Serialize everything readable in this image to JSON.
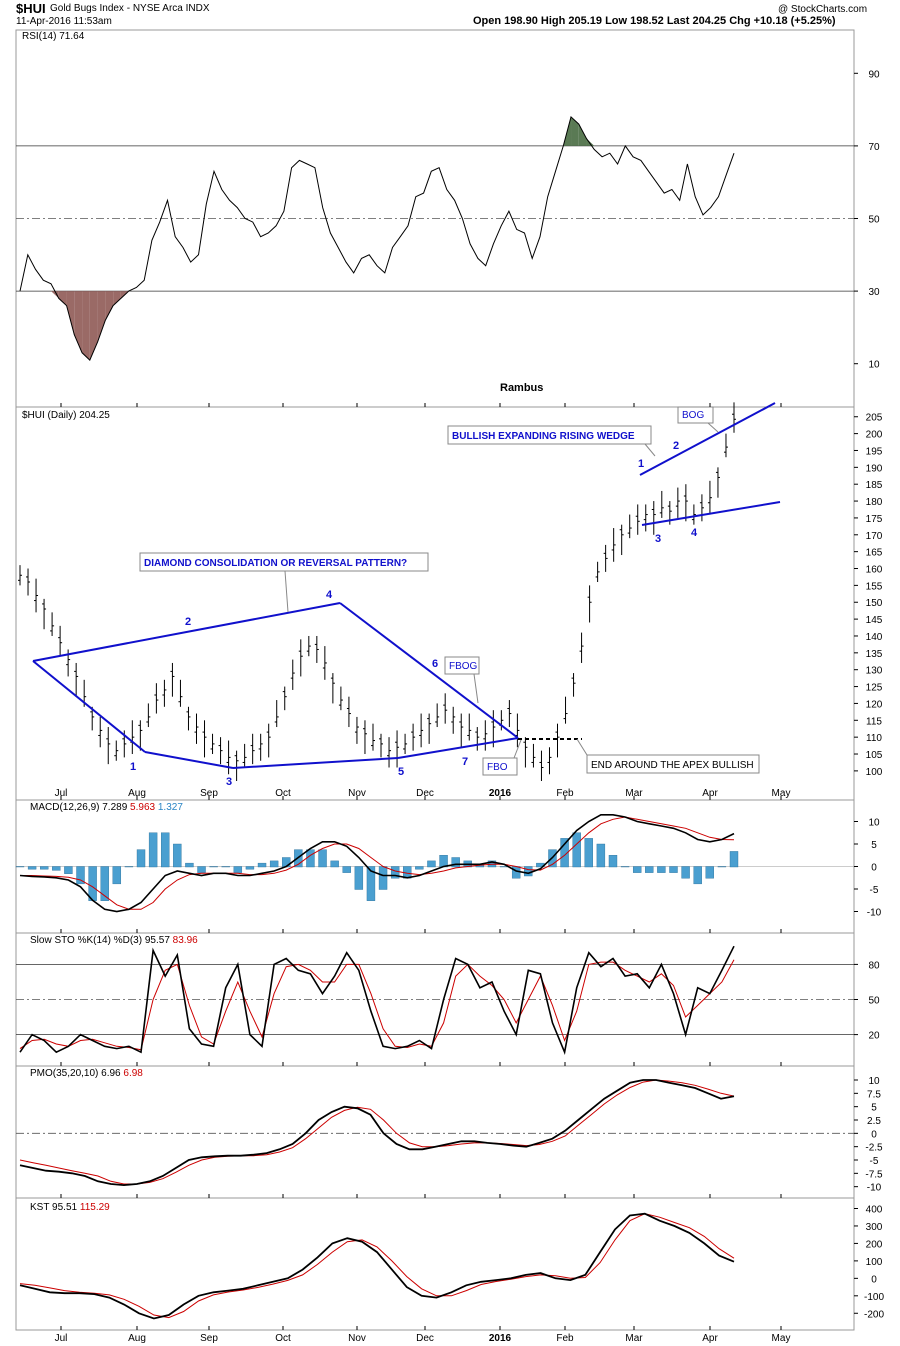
{
  "header": {
    "symbol": "$HUI",
    "name": "Gold Bugs Index - NYSE Arca INDX",
    "date": "11-Apr-2016 11:53am",
    "quote": "Open 198.90  High 205.19  Low 198.52  Last 204.25  Chg +10.18 (+5.25%)",
    "watermark": "@ StockCharts.com",
    "author": "Rambus"
  },
  "chart_data": [
    {
      "type": "line",
      "panel": "rsi",
      "label": "RSI(14) 71.64",
      "ticks": [
        10,
        30,
        50,
        70,
        90
      ],
      "ylim": [
        0,
        100
      ],
      "overbought": 70,
      "oversold": 30,
      "overbought_color": "#5a7a54",
      "oversold_color": "#9a6a66",
      "series": [
        {
          "values": [
            30,
            40,
            36,
            33,
            32,
            28,
            26,
            18,
            13,
            11,
            16,
            22,
            26,
            28,
            30,
            31,
            33,
            44,
            49,
            55,
            45,
            42,
            38,
            40,
            54,
            63,
            58,
            55,
            53,
            50,
            49,
            45,
            46,
            48,
            52,
            64,
            66,
            65,
            64,
            53,
            46,
            42,
            38,
            35,
            39,
            40,
            37,
            35,
            42,
            45,
            48,
            56,
            57,
            63,
            64,
            58,
            55,
            50,
            43,
            39,
            37,
            43,
            48,
            52,
            47,
            46,
            39,
            45,
            56,
            63,
            70,
            78,
            76,
            72,
            69,
            67,
            68,
            65,
            70,
            67,
            66,
            63,
            60,
            57,
            58,
            55,
            65,
            56,
            51,
            53,
            56,
            62,
            68
          ]
        }
      ]
    },
    {
      "type": "ohlc",
      "panel": "price",
      "label": "$HUI (Daily) 204.25",
      "ticks": [
        100,
        105,
        110,
        115,
        120,
        125,
        130,
        135,
        140,
        145,
        150,
        155,
        160,
        165,
        170,
        175,
        180,
        185,
        190,
        195,
        200,
        205
      ],
      "ylim": [
        97,
        207
      ],
      "values": [
        158,
        156,
        152,
        148,
        143,
        138,
        133,
        128,
        122,
        116,
        112,
        108,
        106,
        108,
        110,
        112,
        116,
        121,
        124,
        128,
        122,
        116,
        113,
        110,
        108,
        106,
        104,
        103,
        104,
        106,
        108,
        110,
        116,
        122,
        129,
        134,
        137,
        136,
        132,
        126,
        121,
        117,
        113,
        111,
        109,
        108,
        106,
        107,
        108,
        110,
        112,
        114,
        116,
        118,
        116,
        113,
        112,
        110,
        111,
        113,
        115,
        117,
        112,
        107,
        104,
        101,
        104,
        110,
        117,
        126,
        137,
        150,
        159,
        163,
        167,
        170,
        172,
        174,
        176,
        176,
        178,
        177,
        180,
        180,
        176,
        178,
        181,
        187,
        196,
        204.25
      ],
      "annotations": {
        "diamond_title": "DIAMOND CONSOLIDATION  OR REVERSAL PATTERN?",
        "wedge_title": "BULLISH EXPANDING RISING WEDGE",
        "fbog": "FBOG",
        "fbo": "FBO",
        "bog": "BOG",
        "apex": "END AROUND THE APEX BULLISH",
        "diamond_points": [
          "1",
          "2",
          "3",
          "4",
          "5",
          "6",
          "7"
        ],
        "wedge_points": [
          "1",
          "2",
          "3",
          "4"
        ]
      },
      "pattern_color": "#1010cc"
    },
    {
      "type": "line",
      "panel": "macd",
      "label_name": "MACD(12,26,9)",
      "label_values": [
        "7.289",
        "5.963",
        "1.327"
      ],
      "ticks": [
        -10,
        -5,
        0,
        5,
        10
      ],
      "ylim": [
        -13,
        13
      ],
      "series": [
        {
          "name": "MACD",
          "values": [
            -2,
            -2.2,
            -2.3,
            -2.5,
            -3,
            -4.5,
            -7.5,
            -9.5,
            -10,
            -9.5,
            -8,
            -5,
            -2,
            -1,
            -1.5,
            -2,
            -1.5,
            -1.5,
            -2,
            -2,
            -1.5,
            -1,
            0,
            2,
            4,
            5.5,
            5.5,
            4.5,
            2,
            -1,
            -2,
            -2,
            -2.5,
            -2,
            -1,
            0,
            0.5,
            0.5,
            0.5,
            1,
            0.5,
            -1,
            -1.5,
            -0.5,
            2,
            5,
            8,
            10,
            11.5,
            11.5,
            11,
            10,
            9.5,
            9,
            8.5,
            7.5,
            6,
            5.5,
            6,
            7.3
          ]
        },
        {
          "name": "Signal",
          "values": [
            -2,
            -2,
            -2.1,
            -2.2,
            -2.4,
            -3,
            -4.5,
            -6.5,
            -8.5,
            -9.5,
            -9.5,
            -8,
            -5,
            -3,
            -1.8,
            -1.5,
            -1.5,
            -1.5,
            -1.5,
            -1.8,
            -1.8,
            -1.5,
            -0.8,
            0.5,
            2.5,
            4,
            5,
            5,
            4,
            2,
            0,
            -1,
            -1.5,
            -1.8,
            -1.5,
            -1,
            -0.3,
            0,
            0.3,
            0.5,
            0.5,
            0,
            -0.7,
            -0.8,
            0.5,
            2.5,
            5,
            7.5,
            9.5,
            10.5,
            11,
            10.5,
            10,
            9.5,
            9,
            8.5,
            7.5,
            6.5,
            6,
            5.96
          ]
        }
      ],
      "colors": {
        "macd": "#000000",
        "signal": "#cc0000",
        "hist": "#4a9fd0",
        "hist_value": "#2a85c5"
      }
    },
    {
      "type": "line",
      "panel": "sto",
      "label_name": "Slow STO %K(14) %D(3)",
      "label_values": [
        "95.57",
        "83.96"
      ],
      "ticks": [
        20,
        50,
        80
      ],
      "ylim": [
        0,
        100
      ],
      "series": [
        {
          "name": "%K",
          "values": [
            5,
            20,
            15,
            5,
            10,
            20,
            15,
            10,
            8,
            10,
            5,
            92,
            70,
            88,
            25,
            12,
            10,
            60,
            80,
            20,
            10,
            80,
            85,
            75,
            72,
            55,
            70,
            90,
            75,
            40,
            10,
            8,
            10,
            15,
            8,
            50,
            85,
            80,
            60,
            65,
            40,
            20,
            75,
            72,
            30,
            5,
            60,
            90,
            78,
            85,
            70,
            72,
            60,
            80,
            55,
            20,
            60,
            55,
            75,
            95.57
          ]
        },
        {
          "name": "%D",
          "values": [
            8,
            15,
            16,
            12,
            10,
            15,
            16,
            13,
            10,
            9,
            7,
            50,
            75,
            80,
            45,
            18,
            12,
            40,
            65,
            40,
            18,
            55,
            78,
            80,
            75,
            65,
            65,
            80,
            80,
            55,
            25,
            10,
            9,
            12,
            10,
            30,
            70,
            80,
            70,
            62,
            50,
            30,
            50,
            70,
            45,
            15,
            40,
            80,
            82,
            82,
            75,
            70,
            65,
            72,
            62,
            35,
            45,
            55,
            65,
            83.96
          ]
        }
      ]
    },
    {
      "type": "line",
      "panel": "pmo",
      "label_name": "PMO(35,20,10)",
      "label_values": [
        "6.96",
        "6.98"
      ],
      "ticks": [
        10.0,
        7.5,
        5.0,
        2.5,
        0.0,
        -2.5,
        -5.0,
        -7.5,
        -10.0
      ],
      "ylim": [
        -11,
        11.5
      ],
      "series": [
        {
          "name": "PMO",
          "values": [
            -6,
            -6.5,
            -7,
            -7.2,
            -7.5,
            -8,
            -9,
            -9.5,
            -9.7,
            -9.5,
            -9,
            -8,
            -6.5,
            -5,
            -4.5,
            -4.3,
            -4.2,
            -4.2,
            -4,
            -3.7,
            -3,
            -2,
            0,
            2.5,
            4,
            5,
            4.7,
            3.5,
            0,
            -2,
            -3,
            -3,
            -2.5,
            -2,
            -1.5,
            -1.5,
            -1.8,
            -2,
            -2.3,
            -2.5,
            -1.8,
            -1,
            0.5,
            2.5,
            4.5,
            6.5,
            8,
            9.5,
            10,
            10,
            9.5,
            9,
            8.5,
            7.5,
            6.5,
            6.96
          ]
        },
        {
          "name": "Signal",
          "values": [
            -5,
            -5.5,
            -6,
            -6.5,
            -7,
            -7.5,
            -8,
            -9,
            -9.5,
            -9.5,
            -9.2,
            -8.5,
            -7.3,
            -6,
            -5,
            -4.5,
            -4.3,
            -4.2,
            -4.2,
            -4,
            -3.5,
            -2.7,
            -1,
            1,
            3,
            4.3,
            4.9,
            4.5,
            2.5,
            0,
            -1.8,
            -2.5,
            -2.5,
            -2.3,
            -2,
            -1.8,
            -1.8,
            -1.9,
            -2.1,
            -2.3,
            -2.1,
            -1.5,
            -0.5,
            1.5,
            3.5,
            5.5,
            7.2,
            8.6,
            9.6,
            10,
            9.8,
            9.5,
            9,
            8.3,
            7.5,
            6.98
          ]
        }
      ]
    },
    {
      "type": "line",
      "panel": "kst",
      "label_name": "KST",
      "label_values": [
        "95.51",
        "115.29"
      ],
      "ticks": [
        400,
        300,
        200,
        100,
        0,
        -100,
        -200
      ],
      "ylim": [
        -250,
        420
      ],
      "series": [
        {
          "name": "KST",
          "values": [
            -40,
            -60,
            -80,
            -85,
            -85,
            -90,
            -110,
            -150,
            -200,
            -230,
            -210,
            -150,
            -100,
            -80,
            -70,
            -60,
            -40,
            -20,
            0,
            50,
            120,
            200,
            230,
            210,
            150,
            50,
            -50,
            -100,
            -110,
            -80,
            -40,
            -20,
            -10,
            0,
            20,
            30,
            0,
            -10,
            20,
            150,
            280,
            360,
            370,
            330,
            300,
            260,
            200,
            130,
            95.51
          ]
        },
        {
          "name": "Signal",
          "values": [
            -30,
            -40,
            -55,
            -70,
            -80,
            -85,
            -95,
            -120,
            -160,
            -210,
            -225,
            -190,
            -130,
            -95,
            -78,
            -67,
            -52,
            -33,
            -12,
            20,
            80,
            150,
            210,
            220,
            180,
            100,
            10,
            -60,
            -100,
            -100,
            -70,
            -35,
            -18,
            -5,
            10,
            20,
            15,
            0,
            5,
            90,
            220,
            330,
            370,
            350,
            320,
            290,
            240,
            170,
            115.29
          ]
        }
      ]
    }
  ],
  "months": [
    "Jul",
    "Aug",
    "Sep",
    "Oct",
    "Nov",
    "Dec",
    "2016",
    "Feb",
    "Mar",
    "Apr",
    "May"
  ]
}
